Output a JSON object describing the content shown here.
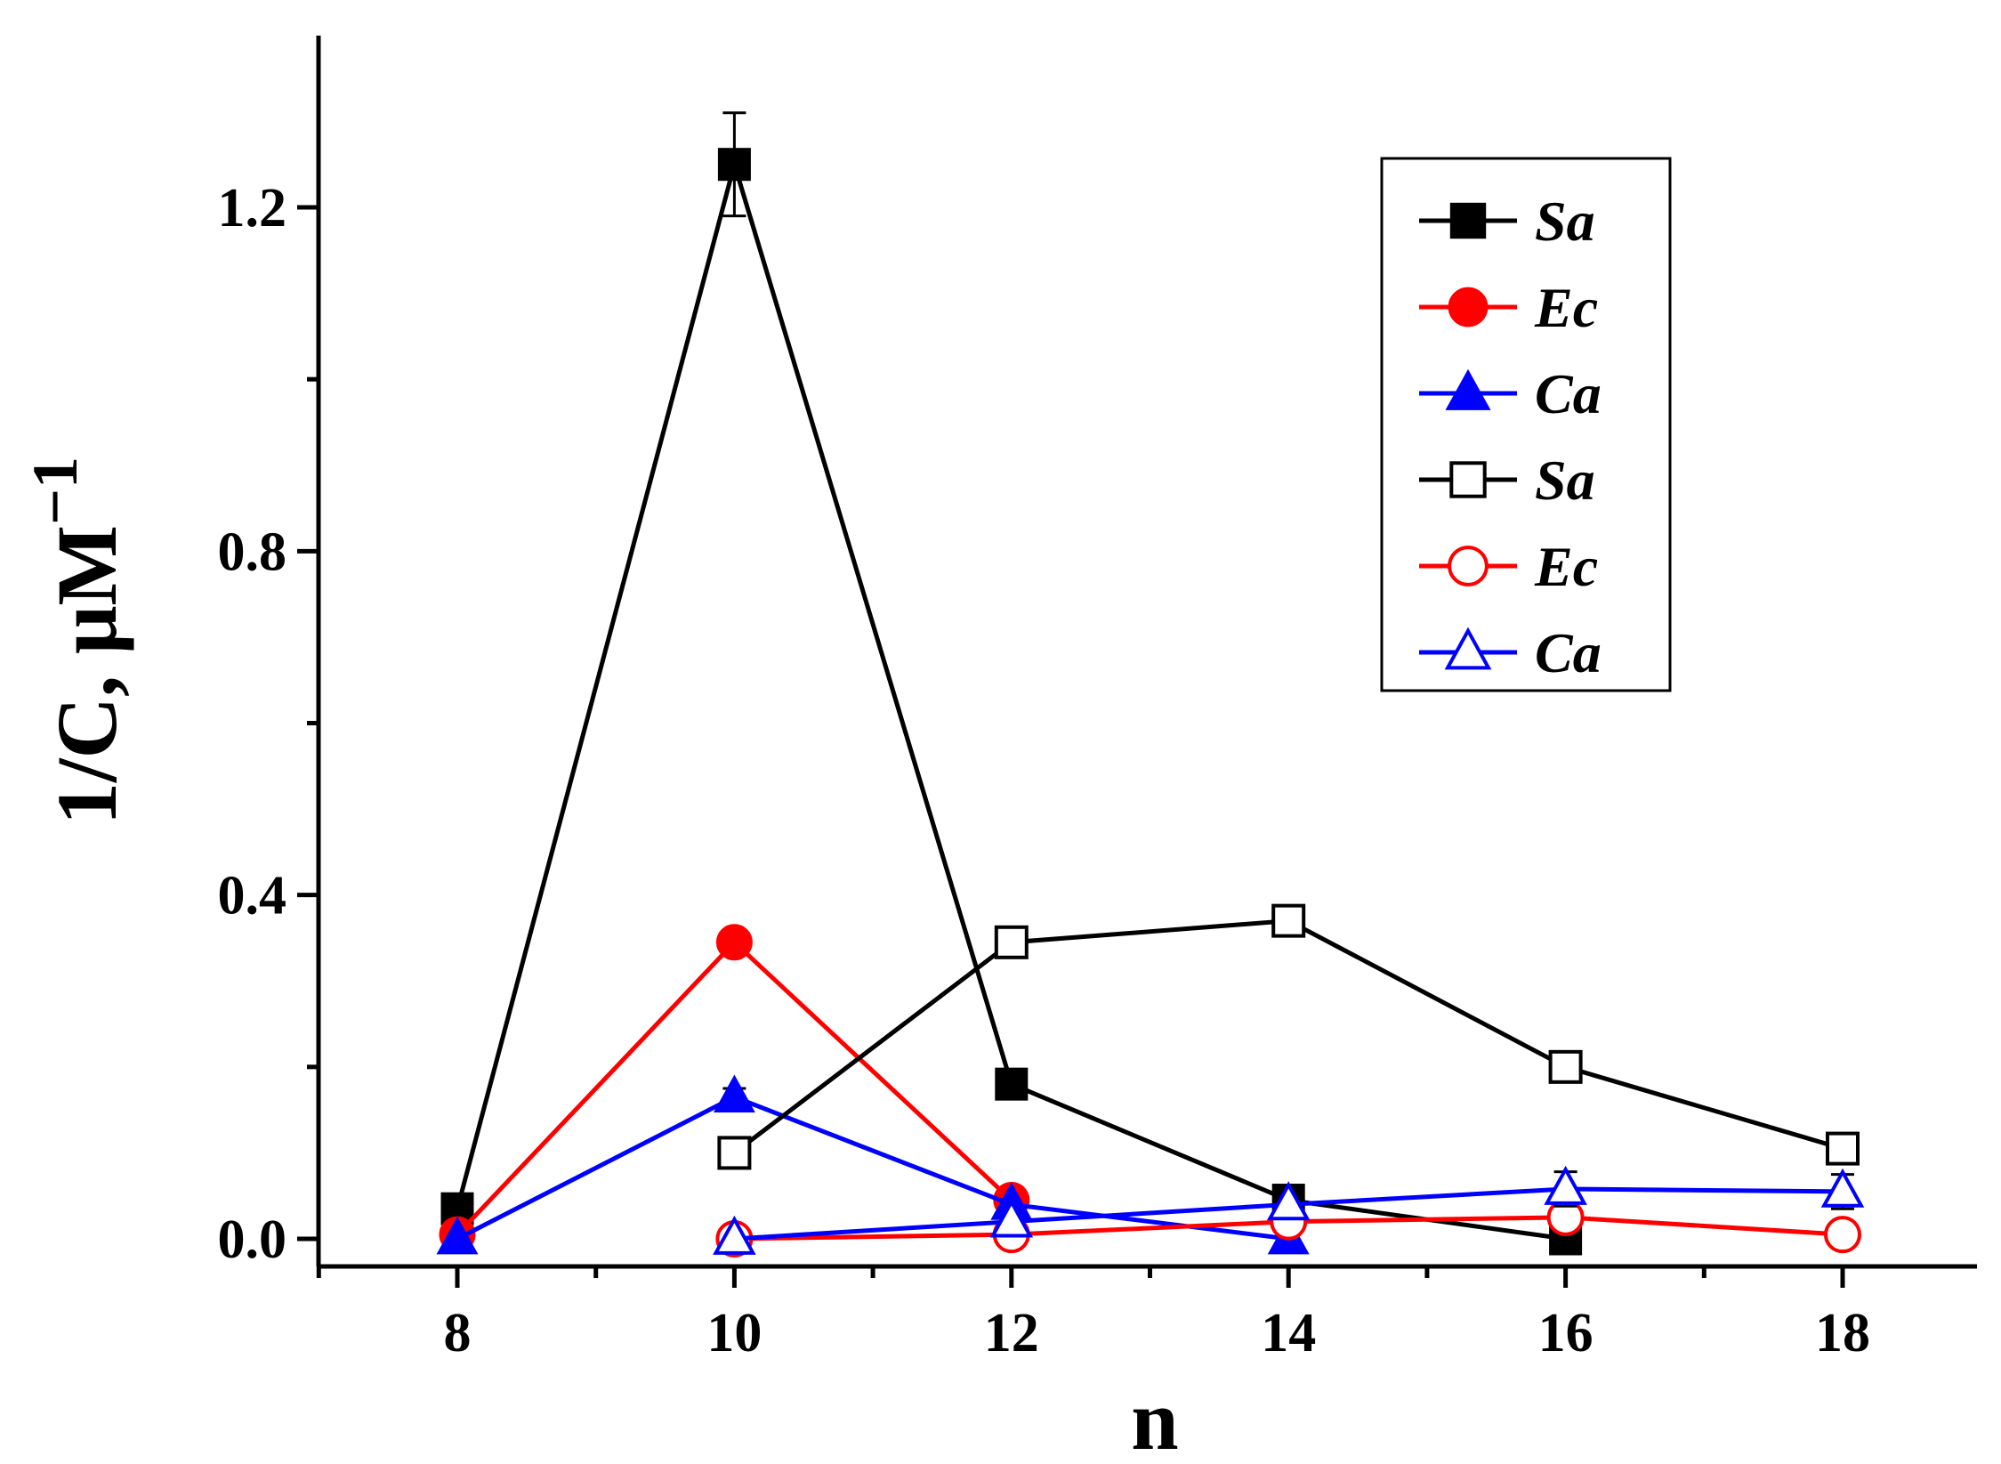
{
  "chart_data": {
    "type": "line",
    "title": "",
    "xlabel": "n",
    "ylabel": {
      "main": "1/C, μM",
      "superscript": "−1"
    },
    "xlim": [
      7,
      19
    ],
    "ylim": [
      -0.03,
      1.4
    ],
    "x_ticks": [
      8,
      10,
      12,
      14,
      16,
      18
    ],
    "x_tick_labels": [
      "8",
      "10",
      "12",
      "14",
      "16",
      "18"
    ],
    "y_ticks": [
      0.0,
      0.4,
      0.8,
      1.2
    ],
    "y_tick_labels": [
      "0.0",
      "0.4",
      "0.8",
      "1.2"
    ],
    "grid": false,
    "legend_position": "top-right",
    "series": [
      {
        "name": "Sa",
        "color": "#000000",
        "marker": "square",
        "filled": true,
        "x": [
          8,
          10,
          12,
          14,
          16
        ],
        "y": [
          0.035,
          1.25,
          0.18,
          0.045,
          0.0
        ],
        "err": [
          0.0,
          0.06,
          0.0,
          0.0,
          0.0
        ]
      },
      {
        "name": "Ec",
        "color": "#ff0000",
        "marker": "circle",
        "filled": true,
        "x": [
          8,
          10,
          12
        ],
        "y": [
          0.005,
          0.345,
          0.045
        ],
        "err": [
          0.0,
          0.012,
          0.0
        ]
      },
      {
        "name": "Ca",
        "color": "#0000ff",
        "marker": "triangle",
        "filled": true,
        "x": [
          8,
          10,
          12,
          14
        ],
        "y": [
          0.0,
          0.165,
          0.04,
          0.0
        ],
        "err": [
          0.0,
          0.01,
          0.0,
          0.0
        ]
      },
      {
        "name": "Sa",
        "color": "#000000",
        "marker": "square",
        "filled": false,
        "x": [
          10,
          12,
          14,
          16,
          18
        ],
        "y": [
          0.1,
          0.345,
          0.37,
          0.2,
          0.105
        ],
        "err": [
          0.012,
          0.0,
          0.0,
          0.01,
          0.01
        ]
      },
      {
        "name": "Ec",
        "color": "#ff0000",
        "marker": "circle",
        "filled": false,
        "x": [
          10,
          12,
          14,
          16,
          18
        ],
        "y": [
          0.0,
          0.005,
          0.02,
          0.025,
          0.005
        ],
        "err": [
          0.0,
          0.012,
          0.0,
          0.015,
          0.015
        ]
      },
      {
        "name": "Ca",
        "color": "#0000ff",
        "marker": "triangle",
        "filled": false,
        "x": [
          10,
          12,
          14,
          16,
          18
        ],
        "y": [
          0.0,
          0.02,
          0.04,
          0.058,
          0.055
        ],
        "err": [
          0.0,
          0.0,
          0.0,
          0.02,
          0.02
        ]
      }
    ]
  }
}
